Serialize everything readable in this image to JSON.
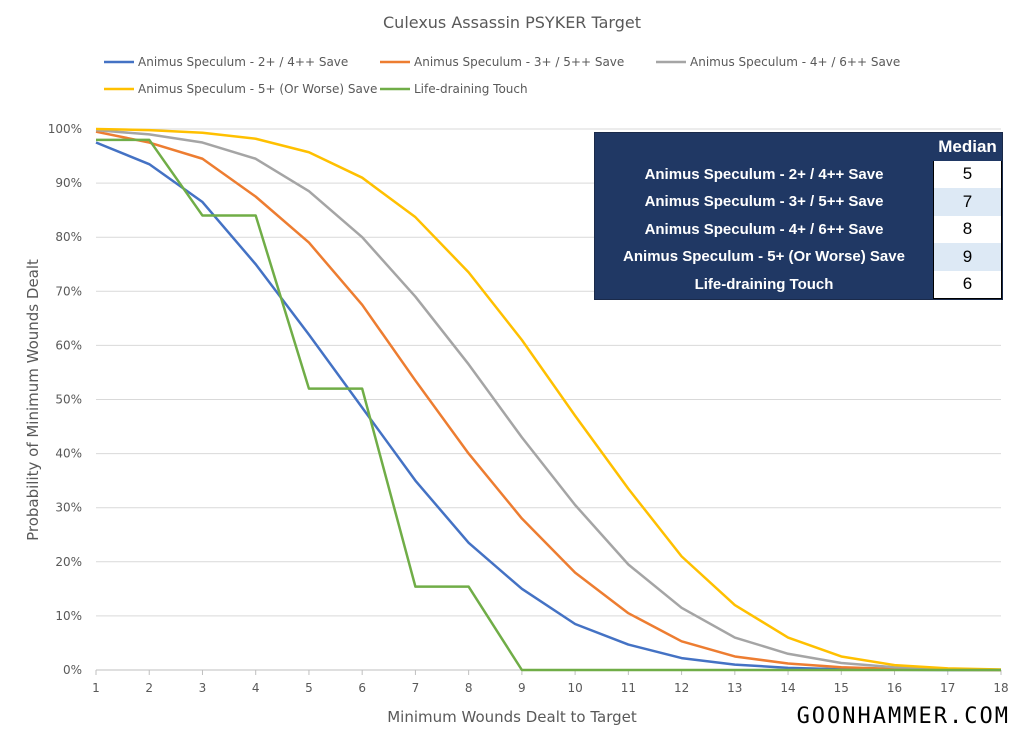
{
  "chart_data": {
    "type": "line",
    "title": "Culexus Assassin PSYKER Target",
    "xlabel": "Minimum Wounds Dealt to Target",
    "ylabel": "Probability of Minimum Wounds Dealt",
    "x": [
      1,
      2,
      3,
      4,
      5,
      6,
      7,
      8,
      9,
      10,
      11,
      12,
      13,
      14,
      15,
      16,
      17,
      18
    ],
    "xlim": [
      1,
      18
    ],
    "ylim": [
      0,
      100
    ],
    "yticks": [
      "0%",
      "10%",
      "20%",
      "30%",
      "40%",
      "50%",
      "60%",
      "70%",
      "80%",
      "90%",
      "100%"
    ],
    "grid": true,
    "legend_placement": "top",
    "series": [
      {
        "name": "Animus Speculum - 2+ / 4++ Save",
        "color": "#4472c4",
        "values": [
          97.5,
          93.5,
          86.5,
          75,
          62,
          48.5,
          35,
          23.5,
          15,
          8.5,
          4.7,
          2.2,
          1,
          0.4,
          0.15,
          0.05,
          0,
          0
        ]
      },
      {
        "name": "Animus Speculum - 3+ / 5++ Save",
        "color": "#ed7d31",
        "values": [
          99.5,
          97.5,
          94.5,
          87.5,
          79,
          67.5,
          53.5,
          40,
          28,
          18,
          10.5,
          5.3,
          2.5,
          1.2,
          0.5,
          0.2,
          0.05,
          0
        ]
      },
      {
        "name": "Animus Speculum - 4+ / 6++ Save",
        "color": "#a5a5a5",
        "values": [
          99.8,
          99,
          97.5,
          94.5,
          88.5,
          80,
          69,
          56.5,
          43,
          30.5,
          19.5,
          11.5,
          6,
          3,
          1.3,
          0.5,
          0.2,
          0.05
        ]
      },
      {
        "name": "Animus Speculum - 5+ (Or Worse) Save",
        "color": "#ffc000",
        "values": [
          100,
          99.8,
          99.3,
          98.2,
          95.7,
          91,
          83.7,
          73.5,
          61,
          47,
          33.5,
          21,
          12,
          6,
          2.5,
          0.9,
          0.3,
          0.1
        ]
      },
      {
        "name": "Life-draining Touch",
        "color": "#70ad47",
        "values": [
          98,
          98,
          84,
          84,
          52,
          52,
          15.4,
          15.4,
          0,
          0,
          0,
          0,
          0,
          0,
          0,
          0,
          0,
          0
        ]
      }
    ]
  },
  "median_table": {
    "header": "Median",
    "rows": [
      {
        "label": "Animus Speculum - 2+ / 4++ Save",
        "value": "5"
      },
      {
        "label": "Animus Speculum - 3+ / 5++ Save",
        "value": "7"
      },
      {
        "label": "Animus Speculum - 4+ / 6++ Save",
        "value": "8"
      },
      {
        "label": "Animus Speculum - 5+ (Or Worse) Save",
        "value": "9"
      },
      {
        "label": "Life-draining Touch",
        "value": "6"
      }
    ]
  },
  "watermark": "GOONHAMMER.COM"
}
